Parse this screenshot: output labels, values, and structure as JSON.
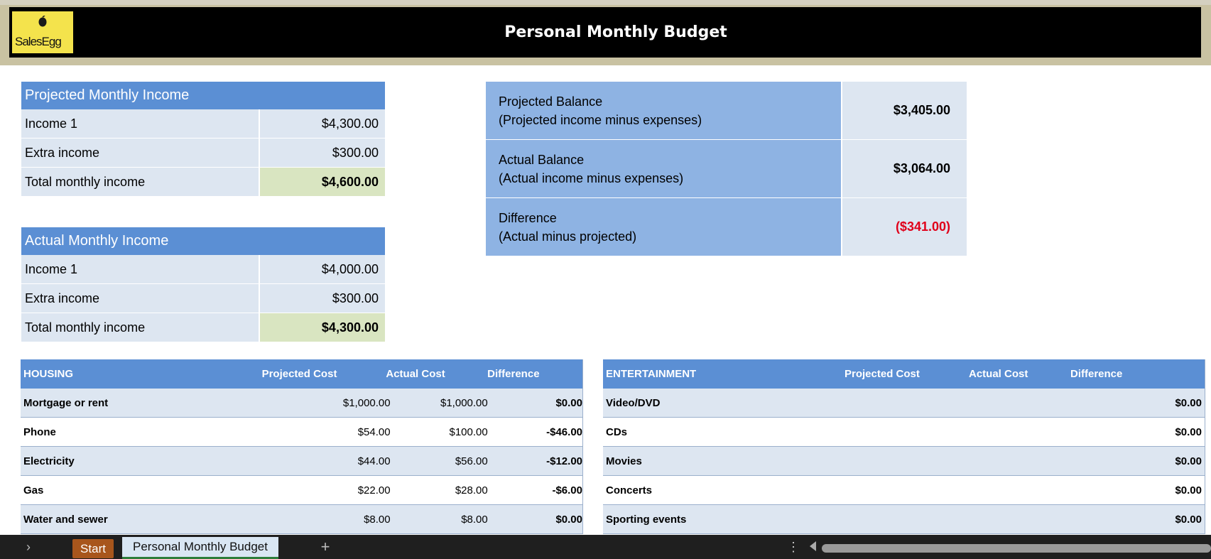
{
  "title": "Personal Monthly Budget",
  "logo_text": "SalesEgg",
  "projected_income": {
    "header": "Projected Monthly Income",
    "rows": [
      {
        "label": "Income 1",
        "value": "$4,300.00"
      },
      {
        "label": "Extra income",
        "value": "$300.00"
      },
      {
        "label": "Total monthly income",
        "value": "$4,600.00"
      }
    ]
  },
  "actual_income": {
    "header": "Actual Monthly Income",
    "rows": [
      {
        "label": "Income 1",
        "value": "$4,000.00"
      },
      {
        "label": "Extra income",
        "value": "$300.00"
      },
      {
        "label": "Total monthly income",
        "value": "$4,300.00"
      }
    ]
  },
  "balance": [
    {
      "label": "Projected Balance",
      "sub": "(Projected income minus expenses)",
      "value": "$3,405.00"
    },
    {
      "label": "Actual Balance",
      "sub": "(Actual income minus expenses)",
      "value": "$3,064.00"
    },
    {
      "label": "Difference",
      "sub": "(Actual minus projected)",
      "value": "($341.00)"
    }
  ],
  "housing": {
    "headers": [
      "HOUSING",
      "Projected Cost",
      "Actual Cost",
      "Difference"
    ],
    "rows": [
      [
        "Mortgage or rent",
        "$1,000.00",
        "$1,000.00",
        "$0.00"
      ],
      [
        "Phone",
        "$54.00",
        "$100.00",
        "-$46.00"
      ],
      [
        "Electricity",
        "$44.00",
        "$56.00",
        "-$12.00"
      ],
      [
        "Gas",
        "$22.00",
        "$28.00",
        "-$6.00"
      ],
      [
        "Water and sewer",
        "$8.00",
        "$8.00",
        "$0.00"
      ]
    ]
  },
  "entertainment": {
    "headers": [
      "ENTERTAINMENT",
      "Projected Cost",
      "Actual Cost",
      "Difference"
    ],
    "rows": [
      [
        "Video/DVD",
        "",
        "",
        "$0.00"
      ],
      [
        "CDs",
        "",
        "",
        "$0.00"
      ],
      [
        "Movies",
        "",
        "",
        "$0.00"
      ],
      [
        "Concerts",
        "",
        "",
        "$0.00"
      ],
      [
        "Sporting events",
        "",
        "",
        "$0.00"
      ]
    ]
  },
  "sheet_tabs": {
    "start": "Start",
    "active": "Personal Monthly Budget",
    "add": "+"
  },
  "colors": {
    "header_blue": "#5b8fd4",
    "row_light": "#dde6f1",
    "total_green": "#d9e5c1",
    "balance_blue": "#8eb3e3",
    "negative_red": "#e0001a",
    "start_tab": "#a8561c"
  }
}
